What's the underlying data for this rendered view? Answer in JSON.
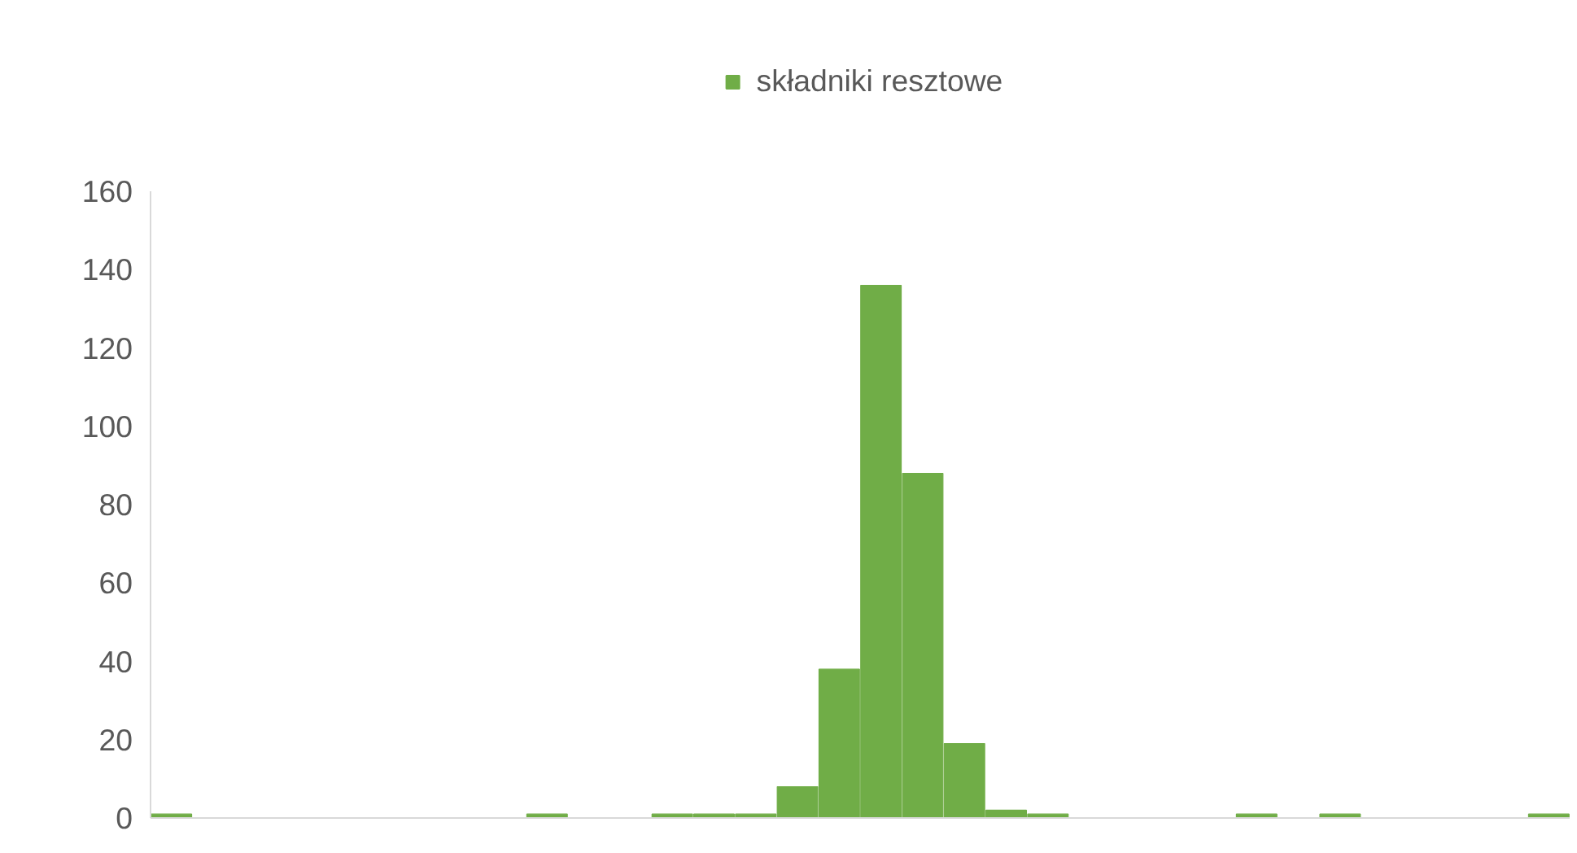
{
  "chart_data": {
    "type": "bar",
    "categories": [
      null,
      null,
      null,
      null,
      null,
      null,
      null,
      null,
      null,
      null,
      null,
      null,
      null,
      null,
      null,
      null,
      null,
      null,
      null,
      null,
      null,
      null,
      null,
      null,
      null,
      null,
      null,
      null,
      null,
      null,
      null,
      null,
      null,
      null
    ],
    "series": [
      {
        "name": "składniki resztowe",
        "color": "#70ad47",
        "values": [
          1,
          0,
          0,
          0,
          0,
          0,
          0,
          0,
          0,
          1,
          0,
          0,
          1,
          1,
          1,
          8,
          38,
          136,
          88,
          19,
          2,
          1,
          0,
          0,
          0,
          0,
          1,
          0,
          1,
          0,
          0,
          0,
          0,
          1
        ]
      }
    ],
    "ylim": [
      0,
      160
    ],
    "yticks": [
      0,
      20,
      40,
      60,
      80,
      100,
      120,
      140,
      160
    ],
    "grid": false,
    "legend": "top"
  }
}
